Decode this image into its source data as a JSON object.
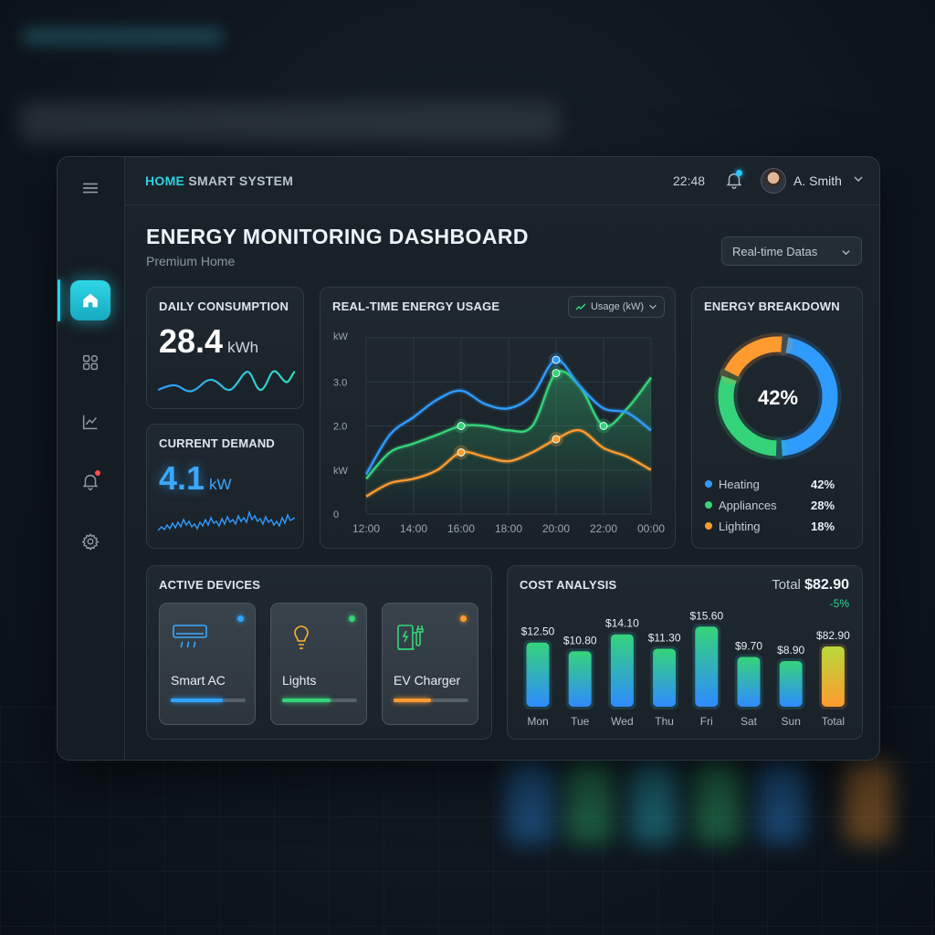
{
  "topbar": {
    "brand_accent": "HOME",
    "brand_rest": "SMART SYSTEM",
    "time": "22:48",
    "user_name": "A. Smith"
  },
  "page": {
    "title": "ENERGY MONITORING DASHBOARD",
    "subtitle": "Premium Home",
    "filter_value": "Real-time Datas"
  },
  "sidebar": {
    "items": [
      {
        "icon": "home-icon",
        "active": true
      },
      {
        "icon": "apps-icon",
        "active": false
      },
      {
        "icon": "chart-icon",
        "active": false
      },
      {
        "icon": "bell-icon",
        "active": false,
        "badge": true
      },
      {
        "icon": "gear-icon",
        "active": false
      }
    ]
  },
  "daily": {
    "title": "DAILY CONSUMPTION",
    "value": "28.4",
    "unit": "kWh"
  },
  "demand": {
    "title": "CURRENT DEMAND",
    "value": "4.1",
    "unit": "kW"
  },
  "breakdown": {
    "title": "ENERGY BREAKDOWN",
    "center": "42%",
    "items": [
      {
        "label": "Heating",
        "value": "42%",
        "color": "#2f9bff"
      },
      {
        "label": "Appliances",
        "value": "28%",
        "color": "#35d47a"
      },
      {
        "label": "Lighting",
        "value": "18%",
        "color": "#ff9b2f"
      }
    ]
  },
  "devices": {
    "title": "ACTIVE DEVICES",
    "items": [
      {
        "name": "Smart AC",
        "icon": "ac-icon",
        "level": 0.7,
        "color": "#2fa4ff"
      },
      {
        "name": "Lights",
        "icon": "bulb-icon",
        "level": 0.65,
        "color": "#35d47a"
      },
      {
        "name": "EV Charger",
        "icon": "ev-charger-icon",
        "level": 0.5,
        "color": "#ff9b2f"
      }
    ]
  },
  "cost": {
    "title": "COST ANALYSIS",
    "total_label": "Total",
    "total_value": "$82.90",
    "change": "-5%"
  },
  "colors": {
    "accent": "#2fd0e2",
    "blue": "#2f9bff",
    "green": "#35d47a",
    "orange": "#ff9b2f"
  },
  "chart_data": [
    {
      "type": "line",
      "title": "REAL-TIME ENERGY USAGE",
      "legend_label": "Usage (kW)",
      "ylabel": "kW",
      "y_ticks": [
        "3.0",
        "2.0",
        "kW",
        "0"
      ],
      "x": [
        "12:00",
        "14:00",
        "16:00",
        "18:00",
        "20:00",
        "22:00",
        "00:00"
      ],
      "ylim": [
        0,
        4
      ],
      "grid": true,
      "series": [
        {
          "color": "#2f9bff",
          "points": [
            [
              0,
              0.9
            ],
            [
              0.5,
              1.8
            ],
            [
              1,
              2.2
            ],
            [
              1.5,
              2.6
            ],
            [
              2,
              2.8
            ],
            [
              2.5,
              2.5
            ],
            [
              3,
              2.4
            ],
            [
              3.5,
              2.7
            ],
            [
              4,
              3.5
            ],
            [
              4.5,
              2.9
            ],
            [
              5,
              2.4
            ],
            [
              5.5,
              2.3
            ],
            [
              6,
              1.9
            ]
          ],
          "marker_idx": [
            8
          ]
        },
        {
          "color": "#35d47a",
          "points": [
            [
              0,
              0.8
            ],
            [
              0.5,
              1.4
            ],
            [
              1,
              1.6
            ],
            [
              1.5,
              1.8
            ],
            [
              2,
              2.0
            ],
            [
              2.5,
              2.0
            ],
            [
              3,
              1.9
            ],
            [
              3.5,
              2.0
            ],
            [
              4,
              3.2
            ],
            [
              4.5,
              2.9
            ],
            [
              5,
              2.0
            ],
            [
              5.5,
              2.4
            ],
            [
              6,
              3.1
            ]
          ],
          "marker_idx": [
            4,
            8,
            10
          ]
        },
        {
          "color": "#ff9b2f",
          "points": [
            [
              0,
              0.4
            ],
            [
              0.5,
              0.7
            ],
            [
              1,
              0.8
            ],
            [
              1.5,
              1.0
            ],
            [
              2,
              1.4
            ],
            [
              2.5,
              1.3
            ],
            [
              3,
              1.2
            ],
            [
              3.5,
              1.4
            ],
            [
              4,
              1.7
            ],
            [
              4.5,
              1.9
            ],
            [
              5,
              1.5
            ],
            [
              5.5,
              1.3
            ],
            [
              6,
              1.0
            ]
          ],
          "marker_idx": [
            4,
            8
          ]
        }
      ]
    },
    {
      "type": "bar",
      "title": "COST ANALYSIS",
      "categories": [
        "Mon",
        "Tue",
        "Wed",
        "Thu",
        "Fri",
        "Sat",
        "Sun",
        "Total"
      ],
      "values": [
        12.5,
        10.8,
        14.1,
        11.3,
        15.6,
        9.7,
        8.9,
        82.9
      ],
      "labels": [
        "$12.50",
        "$10.80",
        "$14.10",
        "$11.30",
        "$15.60",
        "$9.70",
        "$8.90",
        "$82.90"
      ]
    },
    {
      "type": "pie",
      "title": "ENERGY BREAKDOWN",
      "categories": [
        "Heating",
        "Appliances",
        "Lighting"
      ],
      "values": [
        42,
        28,
        18
      ]
    }
  ]
}
